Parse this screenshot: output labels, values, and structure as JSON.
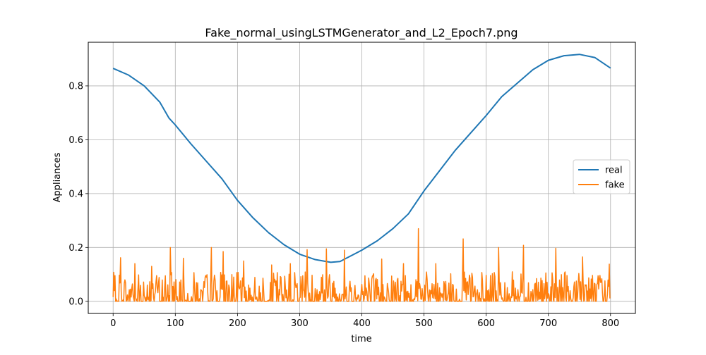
{
  "chart_data": {
    "type": "line",
    "title": "Fake_normal_usingLSTMGenerator_and_L2_Epoch7.png",
    "xlabel": "time",
    "ylabel": "Appliances",
    "xlim": [
      -40,
      840
    ],
    "ylim": [
      -0.045,
      0.962
    ],
    "xticks": [
      0,
      100,
      200,
      300,
      400,
      500,
      600,
      700,
      800
    ],
    "yticks": [
      0.0,
      0.2,
      0.4,
      0.6,
      0.8
    ],
    "ytick_labels": [
      "0.0",
      "0.2",
      "0.4",
      "0.6",
      "0.8"
    ],
    "grid": true,
    "legend_position": "center-right",
    "series": [
      {
        "name": "real",
        "color": "#1f77b4",
        "keypoints": [
          [
            0,
            0.865
          ],
          [
            25,
            0.84
          ],
          [
            50,
            0.8
          ],
          [
            75,
            0.74
          ],
          [
            90,
            0.68
          ],
          [
            100,
            0.655
          ],
          [
            125,
            0.585
          ],
          [
            150,
            0.52
          ],
          [
            175,
            0.455
          ],
          [
            200,
            0.375
          ],
          [
            225,
            0.31
          ],
          [
            250,
            0.255
          ],
          [
            275,
            0.21
          ],
          [
            300,
            0.175
          ],
          [
            325,
            0.155
          ],
          [
            350,
            0.145
          ],
          [
            365,
            0.148
          ],
          [
            375,
            0.16
          ],
          [
            400,
            0.19
          ],
          [
            425,
            0.225
          ],
          [
            450,
            0.27
          ],
          [
            475,
            0.325
          ],
          [
            500,
            0.41
          ],
          [
            525,
            0.485
          ],
          [
            550,
            0.56
          ],
          [
            575,
            0.625
          ],
          [
            600,
            0.69
          ],
          [
            625,
            0.76
          ],
          [
            650,
            0.81
          ],
          [
            675,
            0.86
          ],
          [
            700,
            0.895
          ],
          [
            725,
            0.912
          ],
          [
            750,
            0.917
          ],
          [
            775,
            0.905
          ],
          [
            800,
            0.866
          ]
        ]
      },
      {
        "name": "fake",
        "color": "#ff7f0e",
        "n_points": 800,
        "range": [
          0.0,
          0.27
        ],
        "peaks": [
          [
            12,
            0.162
          ],
          [
            35,
            0.14
          ],
          [
            62,
            0.13
          ],
          [
            92,
            0.2
          ],
          [
            113,
            0.16
          ],
          [
            158,
            0.2
          ],
          [
            177,
            0.185
          ],
          [
            210,
            0.15
          ],
          [
            255,
            0.135
          ],
          [
            285,
            0.14
          ],
          [
            312,
            0.192
          ],
          [
            343,
            0.195
          ],
          [
            372,
            0.19
          ],
          [
            432,
            0.157
          ],
          [
            467,
            0.14
          ],
          [
            491,
            0.27
          ],
          [
            519,
            0.14
          ],
          [
            563,
            0.232
          ],
          [
            620,
            0.2
          ],
          [
            660,
            0.208
          ],
          [
            712,
            0.197
          ],
          [
            755,
            0.165
          ],
          [
            798,
            0.138
          ]
        ]
      }
    ]
  }
}
